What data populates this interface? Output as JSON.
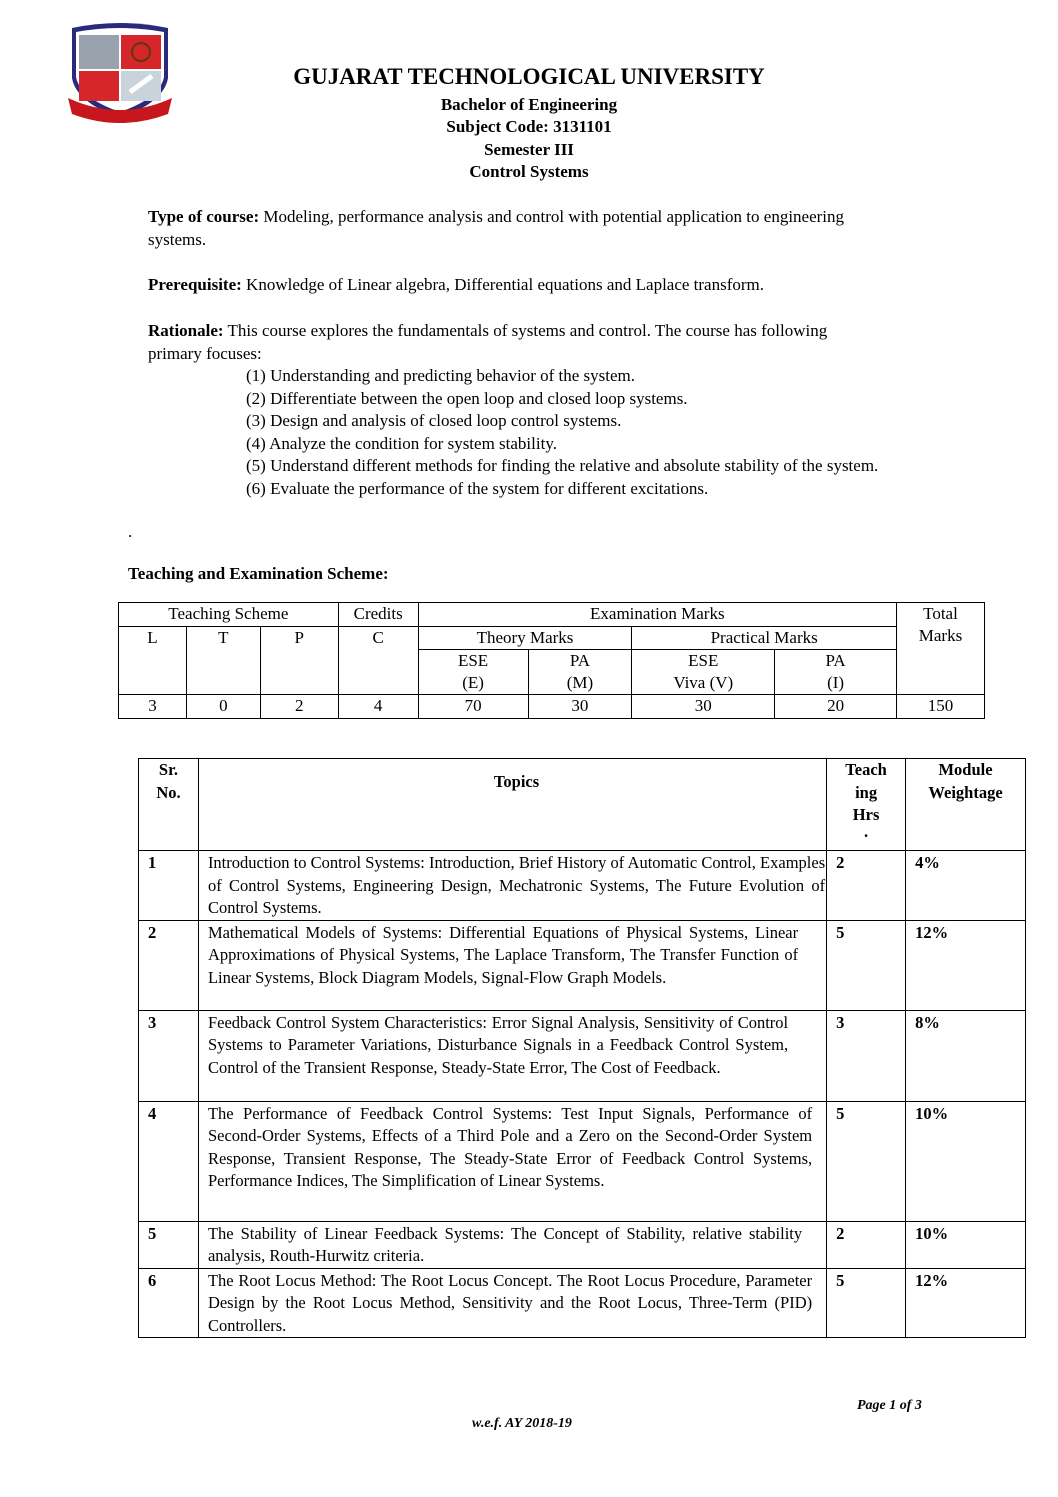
{
  "header": {
    "logo_text": "सत्यमेव ज्ञानं परमम्",
    "university": "GUJARAT TECHNOLOGICAL UNIVERSITY",
    "program": "Bachelor of Engineering",
    "subject_code": "Subject Code: 3131101",
    "semester": "Semester III",
    "subject": "Control Systems"
  },
  "course": {
    "type_label": "Type of course:",
    "type_text": " Modeling, performance analysis and control with potential application to engineering systems.",
    "prereq_label": "Prerequisite:",
    "prereq_text": " Knowledge of Linear algebra, Differential equations and Laplace transform.",
    "rationale_label": "Rationale:",
    "rationale_text": " This course explores the fundamentals of systems and control. The course has following primary focuses:",
    "focuses": [
      "(1) Understanding and predicting behavior of the system.",
      "(2) Differentiate between the open loop and closed loop systems.",
      "(3) Design and analysis of closed loop control systems.",
      "(4) Analyze the condition for system stability.",
      "(5) Understand different methods for finding the relative and absolute stability of the system.",
      "(6) Evaluate the performance of the system for different excitations."
    ],
    "dot": "."
  },
  "scheme": {
    "heading": "Teaching and Examination Scheme:",
    "teaching_scheme": "Teaching Scheme",
    "credits": "Credits",
    "exam_marks": "Examination Marks",
    "total": "Total",
    "marks": "Marks",
    "L": "L",
    "T": "T",
    "P": "P",
    "C": "C",
    "theory": "Theory Marks",
    "practical": "Practical Marks",
    "ese": "ESE",
    "e": "(E)",
    "pa": "PA",
    "m": "(M)",
    "viva": "Viva (V)",
    "i": "(I)",
    "values": [
      "3",
      "0",
      "2",
      "4",
      "70",
      "30",
      "30",
      "20",
      "150"
    ]
  },
  "topics": {
    "headers": {
      "sr1": "Sr.",
      "sr2": "No.",
      "topics": "Topics",
      "hrs1": "Teach",
      "hrs2": "ing",
      "hrs3": "Hrs",
      "hrs4": ".",
      "w1": "Module",
      "w2": "Weightage"
    },
    "rows": [
      {
        "no": "1",
        "text": "Introduction to Control Systems: Introduction, Brief History of Automatic Control, Examples of Control Systems, Engineering Design, Mechatronic Systems, The Future Evolution of Control Systems.",
        "hrs": "2",
        "weight": "4%"
      },
      {
        "no": "2",
        "text": "Mathematical Models of Systems: Differential Equations of Physical Systems, Linear Approximations of Physical Systems, The Laplace Transform, The Transfer Function of Linear Systems, Block Diagram Models, Signal-Flow Graph Models.",
        "hrs": "5",
        "weight": "12%"
      },
      {
        "no": "3",
        "text": "Feedback Control System Characteristics: Error Signal Analysis, Sensitivity of Control Systems to Parameter Variations, Disturbance Signals in a Feedback Control System, Control of the Transient Response, Steady-State Error, The Cost of Feedback.",
        "hrs": "3",
        "weight": "8%"
      },
      {
        "no": "4",
        "text": "The Performance of Feedback Control Systems: Test Input Signals, Performance of Second-Order Systems, Effects of a Third Pole and a Zero on the Second-Order System Response, Transient Response, The Steady-State Error of Feedback Control Systems, Performance Indices, The Simplification of Linear Systems.",
        "hrs": "5",
        "weight": "10%"
      },
      {
        "no": "5",
        "text": "The Stability of Linear Feedback Systems: The Concept of Stability, relative stability analysis, Routh-Hurwitz criteria.",
        "hrs": "2",
        "weight": "10%"
      },
      {
        "no": "6",
        "text": "The Root Locus Method: The Root Locus Concept. The Root Locus Procedure, Parameter Design by the Root Locus Method, Sensitivity and the Root Locus, Three-Term (PID) Controllers.",
        "hrs": "5",
        "weight": "12%"
      }
    ]
  },
  "footer": {
    "page": "Page 1 of 3",
    "wef": "w.e.f. AY 2018-19"
  }
}
